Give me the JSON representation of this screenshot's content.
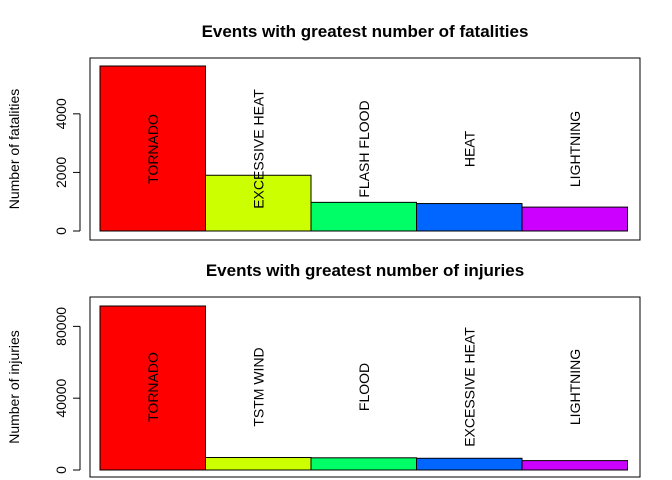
{
  "chart_data": [
    {
      "type": "bar",
      "title": "Events with greatest number of fatalities",
      "xlabel": "",
      "ylabel": "Number of fatalities",
      "categories": [
        "TORNADO",
        "EXCESSIVE HEAT",
        "FLASH FLOOD",
        "HEAT",
        "LIGHTNING"
      ],
      "values": [
        5633,
        1903,
        978,
        937,
        816
      ],
      "colors": [
        "#FF0000",
        "#CCFF00",
        "#00FF66",
        "#0066FF",
        "#CC00FF"
      ],
      "yticks": [
        0,
        2000,
        4000
      ],
      "ylim": [
        0,
        5633
      ],
      "grid": false,
      "legend": "none"
    },
    {
      "type": "bar",
      "title": "Events with greatest number of injuries",
      "xlabel": "",
      "ylabel": "Number of injuries",
      "categories": [
        "TORNADO",
        "TSTM WIND",
        "FLOOD",
        "EXCESSIVE HEAT",
        "LIGHTNING"
      ],
      "values": [
        91346,
        6957,
        6789,
        6525,
        5230
      ],
      "colors": [
        "#FF0000",
        "#CCFF00",
        "#00FF66",
        "#0066FF",
        "#CC00FF"
      ],
      "yticks": [
        0,
        40000,
        80000
      ],
      "ylim": [
        0,
        91346
      ],
      "grid": false,
      "legend": "none"
    }
  ]
}
